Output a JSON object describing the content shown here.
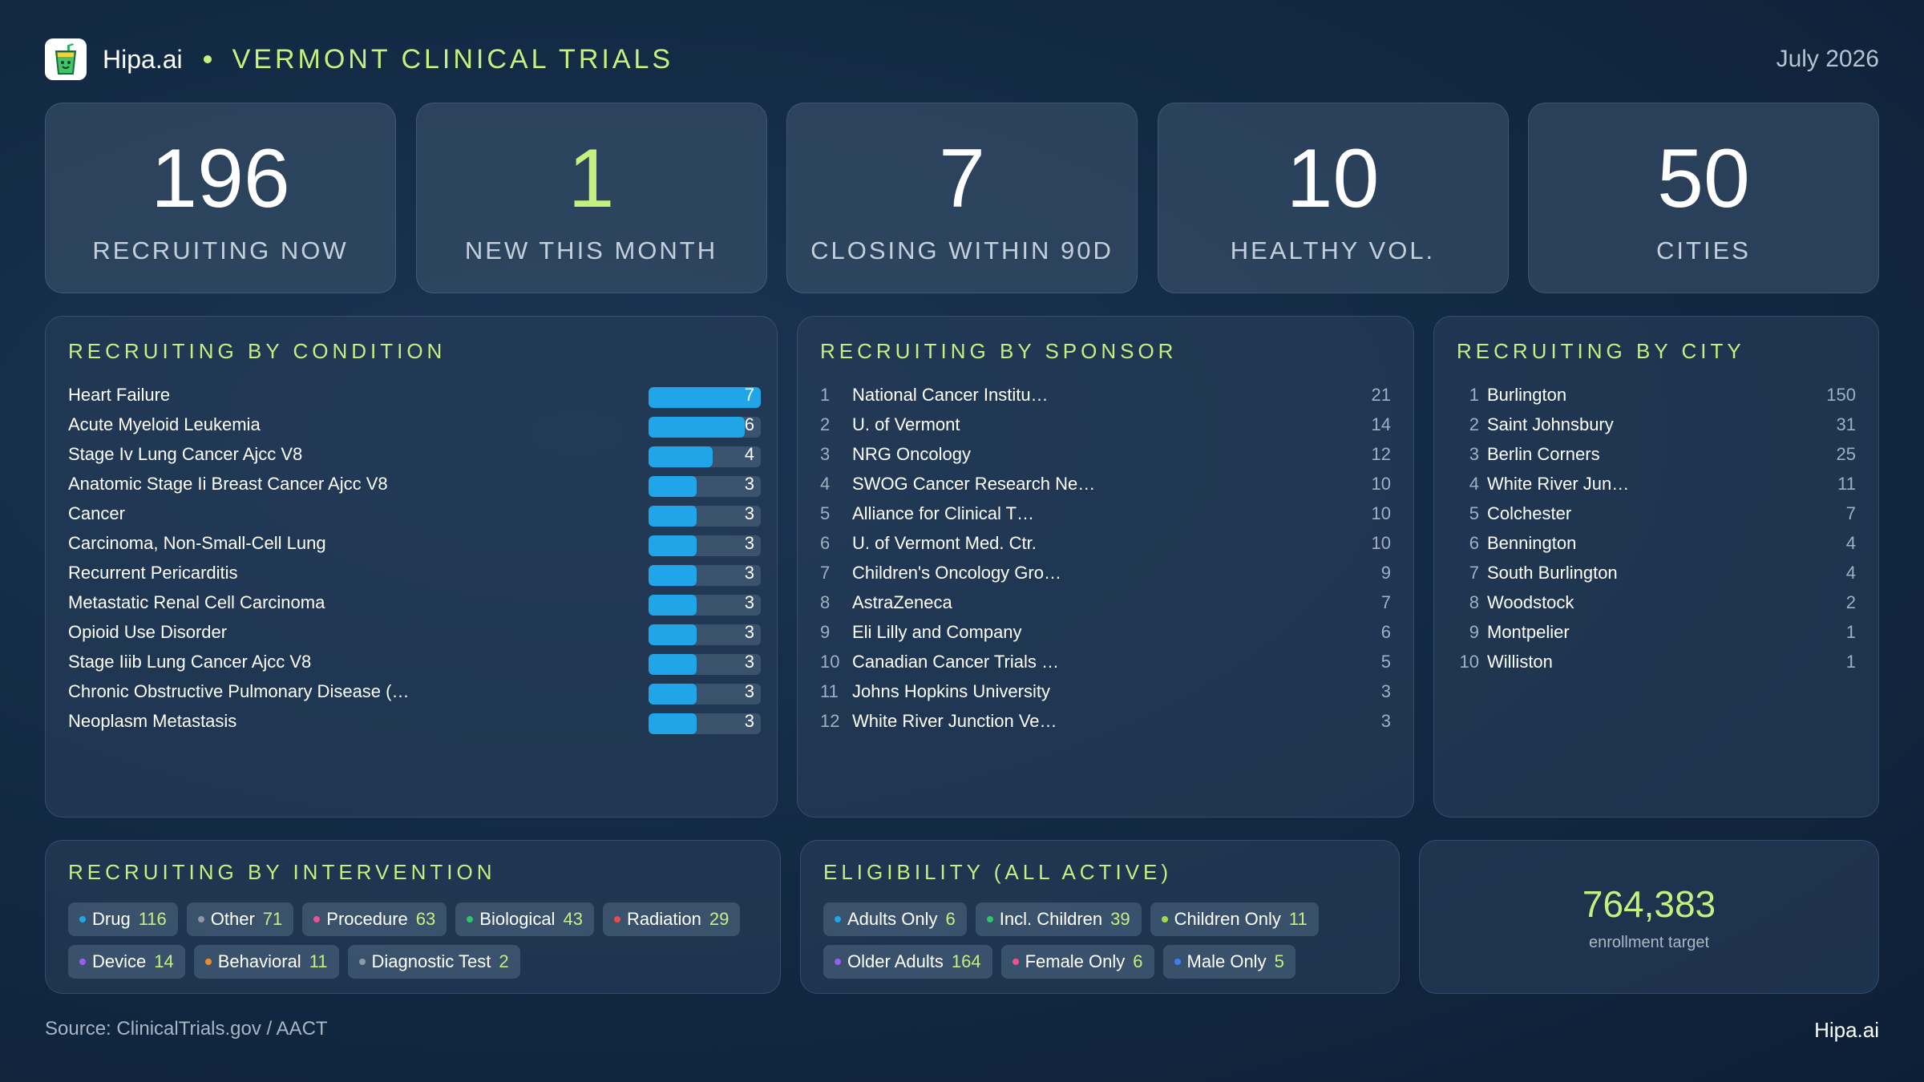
{
  "header": {
    "brand": "Hipa.ai",
    "title": "VERMONT CLINICAL TRIALS",
    "date": "July 2026",
    "logo_icon": "drink-cup-icon"
  },
  "kpis": [
    {
      "value": "196",
      "label": "RECRUITING NOW",
      "accent": false
    },
    {
      "value": "1",
      "label": "NEW THIS MONTH",
      "accent": true
    },
    {
      "value": "7",
      "label": "CLOSING WITHIN 90D",
      "accent": false
    },
    {
      "value": "10",
      "label": "HEALTHY VOL.",
      "accent": false
    },
    {
      "value": "50",
      "label": "CITIES",
      "accent": false
    }
  ],
  "by_condition": {
    "title": "RECRUITING BY CONDITION",
    "max": 7,
    "bar_color": "#1fa5e8",
    "items": [
      {
        "name": "Heart Failure",
        "value": 7
      },
      {
        "name": "Acute Myeloid Leukemia",
        "value": 6
      },
      {
        "name": "Stage Iv Lung Cancer Ajcc V8",
        "value": 4
      },
      {
        "name": "Anatomic Stage Ii Breast Cancer Ajcc V8",
        "value": 3
      },
      {
        "name": "Cancer",
        "value": 3
      },
      {
        "name": "Carcinoma, Non-Small-Cell Lung",
        "value": 3
      },
      {
        "name": "Recurrent Pericarditis",
        "value": 3
      },
      {
        "name": "Metastatic Renal Cell Carcinoma",
        "value": 3
      },
      {
        "name": "Opioid Use Disorder",
        "value": 3
      },
      {
        "name": "Stage Iiib Lung Cancer Ajcc V8",
        "value": 3
      },
      {
        "name": "Chronic Obstructive Pulmonary Disease (…",
        "value": 3
      },
      {
        "name": "Neoplasm Metastasis",
        "value": 3
      }
    ]
  },
  "by_sponsor": {
    "title": "RECRUITING BY SPONSOR",
    "items": [
      {
        "rank": "1",
        "name": "National Cancer Institu…",
        "value": "21"
      },
      {
        "rank": "2",
        "name": "U. of Vermont",
        "value": "14"
      },
      {
        "rank": "3",
        "name": "NRG Oncology",
        "value": "12"
      },
      {
        "rank": "4",
        "name": "SWOG Cancer Research Ne…",
        "value": "10"
      },
      {
        "rank": "5",
        "name": "Alliance for Clinical T…",
        "value": "10"
      },
      {
        "rank": "6",
        "name": "U. of Vermont Med. Ctr.",
        "value": "10"
      },
      {
        "rank": "7",
        "name": "Children's Oncology Gro…",
        "value": "9"
      },
      {
        "rank": "8",
        "name": "AstraZeneca",
        "value": "7"
      },
      {
        "rank": "9",
        "name": "Eli Lilly and Company",
        "value": "6"
      },
      {
        "rank": "10",
        "name": "Canadian Cancer Trials …",
        "value": "5"
      },
      {
        "rank": "11",
        "name": "Johns Hopkins University",
        "value": "3"
      },
      {
        "rank": "12",
        "name": "White River Junction Ve…",
        "value": "3"
      }
    ]
  },
  "by_city": {
    "title": "RECRUITING BY CITY",
    "items": [
      {
        "rank": "1",
        "name": "Burlington",
        "value": "150"
      },
      {
        "rank": "2",
        "name": "Saint Johnsbury",
        "value": "31"
      },
      {
        "rank": "3",
        "name": "Berlin Corners",
        "value": "25"
      },
      {
        "rank": "4",
        "name": "White River Jun…",
        "value": "11"
      },
      {
        "rank": "5",
        "name": "Colchester",
        "value": "7"
      },
      {
        "rank": "6",
        "name": "Bennington",
        "value": "4"
      },
      {
        "rank": "7",
        "name": "South Burlington",
        "value": "4"
      },
      {
        "rank": "8",
        "name": "Woodstock",
        "value": "2"
      },
      {
        "rank": "9",
        "name": "Montpelier",
        "value": "1"
      },
      {
        "rank": "10",
        "name": "Williston",
        "value": "1"
      }
    ]
  },
  "by_intervention": {
    "title": "RECRUITING BY INTERVENTION",
    "chips": [
      {
        "label": "Drug",
        "value": "116",
        "color": "#1fa5e8"
      },
      {
        "label": "Other",
        "value": "71",
        "color": "#8d98a5"
      },
      {
        "label": "Procedure",
        "value": "63",
        "color": "#f0508f"
      },
      {
        "label": "Biological",
        "value": "43",
        "color": "#2fc56a"
      },
      {
        "label": "Radiation",
        "value": "29",
        "color": "#f04848"
      },
      {
        "label": "Device",
        "value": "14",
        "color": "#9b5cf0"
      },
      {
        "label": "Behavioral",
        "value": "11",
        "color": "#f08a2a"
      },
      {
        "label": "Diagnostic Test",
        "value": "2",
        "color": "#8d98a5"
      }
    ]
  },
  "eligibility": {
    "title": "ELIGIBILITY (ALL ACTIVE)",
    "chips": [
      {
        "label": "Adults Only",
        "value": "6",
        "color": "#1fa5e8"
      },
      {
        "label": "Incl. Children",
        "value": "39",
        "color": "#2fc56a"
      },
      {
        "label": "Children Only",
        "value": "11",
        "color": "#a6d84a"
      },
      {
        "label": "Older Adults",
        "value": "164",
        "color": "#9b5cf0"
      },
      {
        "label": "Female Only",
        "value": "6",
        "color": "#f0508f"
      },
      {
        "label": "Male Only",
        "value": "5",
        "color": "#3b7ff0"
      }
    ]
  },
  "enrollment": {
    "value": "764,383",
    "label": "enrollment target"
  },
  "footer": {
    "source": "Source: ClinicalTrials.gov /  AACT",
    "brand": "Hipa.ai"
  }
}
